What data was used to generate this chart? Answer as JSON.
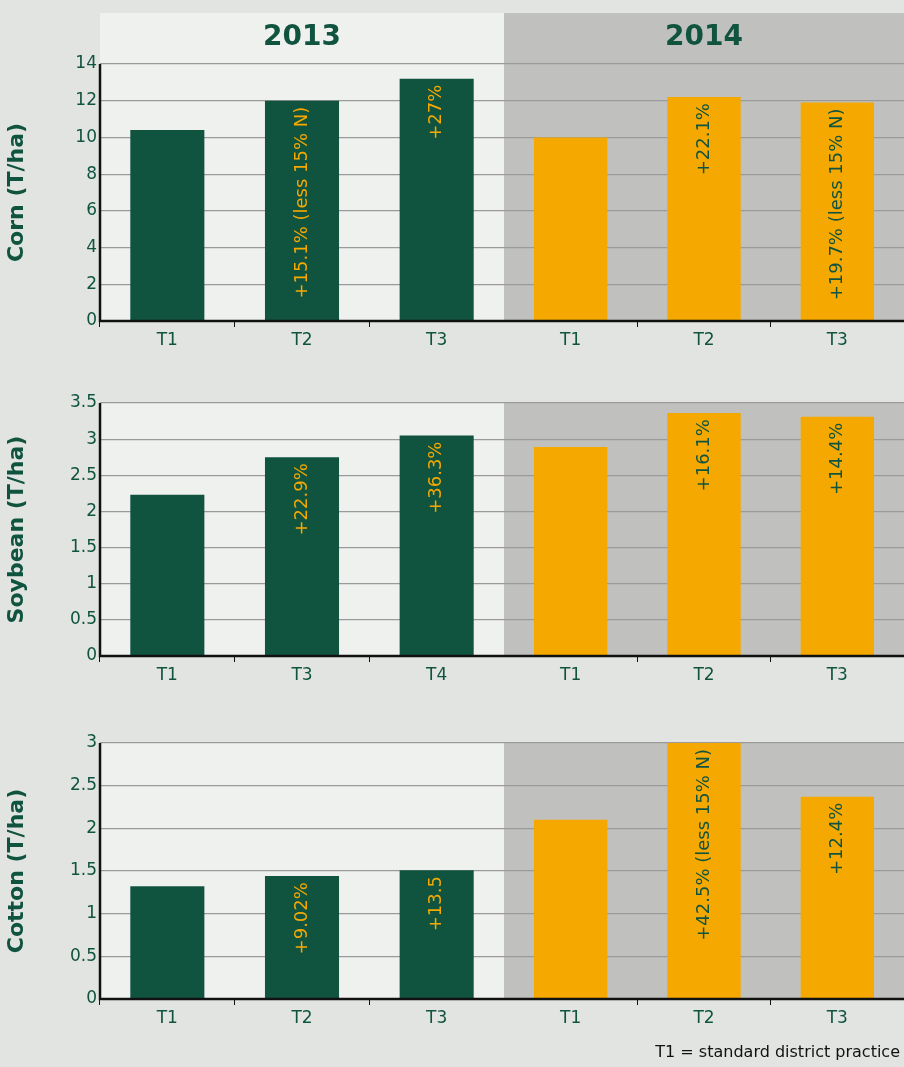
{
  "chart_data": [
    {
      "type": "bar",
      "title": "2013",
      "ylabel": "Corn (T/ha)",
      "categories": [
        "T1",
        "T2",
        "T3"
      ],
      "values": [
        10.4,
        12.0,
        13.2
      ],
      "color": "#105440",
      "ylim": [
        0,
        14
      ],
      "yticks": [
        0,
        2,
        4,
        6,
        8,
        10,
        12,
        14
      ],
      "grid": "y",
      "annotations": [
        {
          "text": "+15.1% (less 15% N)",
          "x": "T2",
          "y": 12.0
        },
        {
          "text": "+27%",
          "x": "T3",
          "y": 13.2
        }
      ]
    },
    {
      "type": "bar",
      "title": "2014",
      "categories": [
        "T1",
        "T2",
        "T3"
      ],
      "values": [
        10.0,
        12.2,
        11.9
      ],
      "color": "#f5a800",
      "ylim": [
        0,
        14
      ],
      "yticks": [
        0,
        2,
        4,
        6,
        8,
        10,
        12,
        14
      ],
      "grid": "y",
      "tick_labels": "x",
      "annotations": [
        {
          "text": "+22.1%",
          "x": "T2",
          "y": 12.2
        },
        {
          "text": "+19.7% (less 15% N)",
          "x": "T3",
          "y": 11.9
        }
      ]
    },
    {
      "type": "bar",
      "ylabel": "Soybean (T/ha)",
      "categories": [
        "T1",
        "T3",
        "T4"
      ],
      "values": [
        2.23,
        2.75,
        3.05
      ],
      "color": "#105440",
      "ylim": [
        0,
        3.5
      ],
      "yticks": [
        0,
        0.5,
        1,
        1.5,
        2,
        2.5,
        3,
        3.5
      ],
      "grid": "y",
      "annotations": [
        {
          "text": "+22.9%",
          "x": "T3",
          "y": 2.75
        },
        {
          "text": "+36.3%",
          "x": "T4",
          "y": 3.05
        }
      ]
    },
    {
      "type": "bar",
      "categories": [
        "T1",
        "T2",
        "T3"
      ],
      "values": [
        2.89,
        3.36,
        3.31
      ],
      "color": "#f5a800",
      "ylim": [
        0,
        3.5
      ],
      "yticks": [
        0,
        0.5,
        1,
        1.5,
        2,
        2.5,
        3,
        3.5
      ],
      "grid": "y",
      "tick_labels": "x",
      "annotations": [
        {
          "text": "+16.1%",
          "x": "T2",
          "y": 3.36
        },
        {
          "text": "+14.4%",
          "x": "T3",
          "y": 3.31
        }
      ]
    },
    {
      "type": "bar",
      "ylabel": "Cotton (T/ha)",
      "categories": [
        "T1",
        "T2",
        "T3"
      ],
      "values": [
        1.32,
        1.44,
        1.51
      ],
      "color": "#105440",
      "ylim": [
        0,
        3
      ],
      "yticks": [
        0,
        0.5,
        1,
        1.5,
        2,
        2.5,
        3
      ],
      "grid": "y",
      "annotations": [
        {
          "text": "+9.02%",
          "x": "T2",
          "y": 1.44
        },
        {
          "text": "+13.5",
          "x": "T3",
          "y": 1.51
        }
      ]
    },
    {
      "type": "bar",
      "categories": [
        "T1",
        "T2",
        "T3"
      ],
      "values": [
        2.1,
        3.0,
        2.37
      ],
      "color": "#f5a800",
      "ylim": [
        0,
        3
      ],
      "yticks": [
        0,
        0.5,
        1,
        1.5,
        2,
        2.5,
        3
      ],
      "grid": "y",
      "tick_labels": "x",
      "annotations": [
        {
          "text": "+42.5% (less 15% N)",
          "x": "T2",
          "y": 3.0
        },
        {
          "text": "+12.4%",
          "x": "T3",
          "y": 2.37
        },
        "T1 = standard district practice"
      ]
    }
  ]
}
